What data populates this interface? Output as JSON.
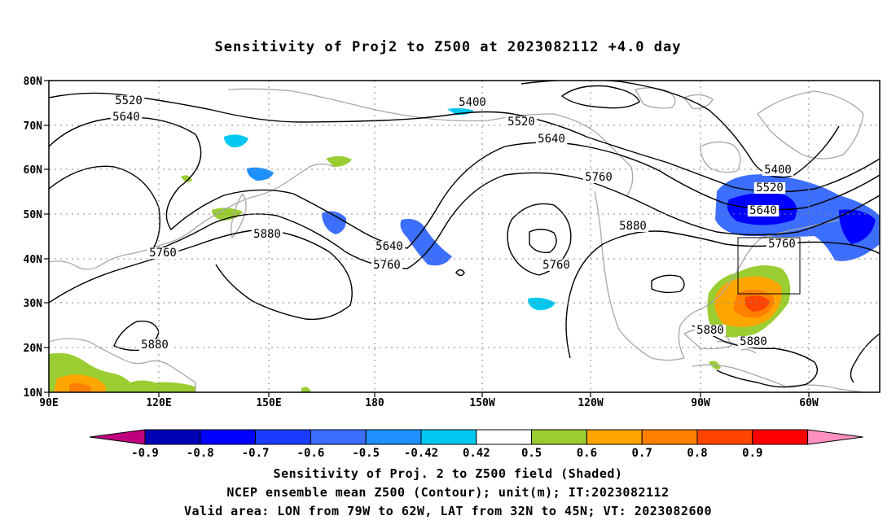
{
  "title": "Sensitivity of Proj2 to Z500 at 2023082112 +4.0 day",
  "lat_labels": [
    "80N",
    "70N",
    "60N",
    "50N",
    "40N",
    "30N",
    "20N",
    "10N"
  ],
  "lon_labels": [
    "90E",
    "120E",
    "150E",
    "180",
    "150W",
    "120W",
    "90W",
    "60W"
  ],
  "contour_labels": [
    "5520",
    "5640",
    "5400",
    "5520",
    "5640",
    "5760",
    "5880",
    "5760",
    "5640",
    "5760",
    "5760",
    "5880",
    "5400",
    "5520",
    "5640",
    "5760",
    "5880",
    "5880",
    "5880"
  ],
  "colorbar": {
    "ticks": [
      "-0.9",
      "-0.8",
      "-0.7",
      "-0.6",
      "-0.5",
      "-0.42",
      "0.42",
      "0.5",
      "0.6",
      "0.7",
      "0.8",
      "0.9"
    ],
    "colors": [
      "#c0007f",
      "#0000b4",
      "#0000ff",
      "#1a3cff",
      "#3c6eff",
      "#1e90ff",
      "#00c8f0",
      "#ffffff",
      "#9acd32",
      "#ffa500",
      "#ff7f00",
      "#ff4500",
      "#ff0000",
      "#ff90c0"
    ]
  },
  "valid_area": {
    "lon_from": "79W",
    "lon_to": "62W",
    "lat_from": "32N",
    "lat_to": "45N"
  },
  "footer": {
    "line1": "Sensitivity of Proj. 2 to Z500 field (Shaded)",
    "line2": "NCEP ensemble mean Z500 (Contour); unit(m); IT:2023082112",
    "line3": "Valid area: LON from 79W to 62W, LAT from 32N to 45N; VT: 2023082600"
  }
}
